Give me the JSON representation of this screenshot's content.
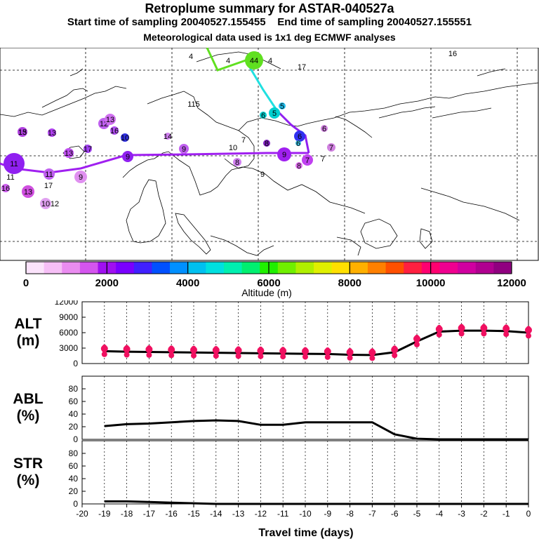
{
  "header": {
    "title": "Retroplume summary for ASTAR-040527a",
    "start_text": "Start time of sampling 20040527.155455",
    "end_text": "End time of sampling 20040527.155551",
    "met_text": "Meteorological data used is 1x1 deg ECMWF analyses"
  },
  "map": {
    "labels": [
      "4",
      "4",
      "44",
      "4",
      "16",
      "17",
      "115",
      "5",
      "5",
      "6",
      "6",
      "6",
      "6",
      "7",
      "7",
      "7",
      "7",
      "8",
      "8",
      "8",
      "9",
      "9",
      "9",
      "9",
      "10",
      "10",
      "11",
      "11",
      "11",
      "12",
      "12",
      "13",
      "13",
      "13",
      "13",
      "13",
      "14",
      "15",
      "16",
      "16",
      "17",
      "17",
      "10",
      "9"
    ]
  },
  "colorbar": {
    "ticks": [
      "0",
      "2000",
      "4000",
      "6000",
      "8000",
      "10000",
      "12000"
    ],
    "label": "Altitude (m)",
    "colors": [
      "#fbe3fb",
      "#f6bff6",
      "#ea8cf0",
      "#d455ee",
      "#a010f0",
      "#7a00ff",
      "#4020ff",
      "#0050ff",
      "#0090ff",
      "#00c0f0",
      "#00e0e0",
      "#00f0b0",
      "#00f070",
      "#20f000",
      "#70f000",
      "#b0f000",
      "#e0f000",
      "#ffe000",
      "#ffb000",
      "#ff8000",
      "#ff5000",
      "#ff2040",
      "#ff0070",
      "#f00090",
      "#d000a0",
      "#b00090",
      "#900080"
    ]
  },
  "chart_data": [
    {
      "type": "line",
      "panel": "ALT",
      "ylabel_lines": [
        "ALT",
        "(m)"
      ],
      "ylim": [
        0,
        12000
      ],
      "yticks": [
        "12000",
        "9000",
        "6000",
        "3000",
        "0"
      ],
      "x": [
        -19,
        -18,
        -17,
        -16,
        -15,
        -14,
        -13,
        -12,
        -11,
        -10,
        -9,
        -8,
        -7,
        -6,
        -5,
        -4,
        -3,
        -2,
        -1,
        0
      ],
      "values": [
        2400,
        2300,
        2250,
        2200,
        2150,
        2100,
        2050,
        2000,
        1950,
        1900,
        1850,
        1700,
        1650,
        2200,
        4300,
        6200,
        6400,
        6400,
        6300,
        6000
      ]
    },
    {
      "type": "line",
      "panel": "ABL",
      "ylabel_lines": [
        "ABL",
        "(%)"
      ],
      "ylim": [
        0,
        100
      ],
      "yticks": [
        "80",
        "60",
        "40",
        "20",
        "0"
      ],
      "x": [
        -19,
        -18,
        -17,
        -16,
        -15,
        -14,
        -13,
        -12,
        -11,
        -10,
        -9,
        -8,
        -7,
        -6,
        -5,
        -4,
        -3,
        -2,
        -1,
        0
      ],
      "values": [
        21,
        24,
        25,
        27,
        29,
        30,
        29,
        23,
        23,
        27,
        27,
        27,
        27,
        8,
        1,
        0,
        0,
        0,
        0,
        0
      ]
    },
    {
      "type": "line",
      "panel": "STR",
      "ylabel_lines": [
        "STR",
        "(%)"
      ],
      "ylim": [
        0,
        100
      ],
      "yticks": [
        "80",
        "60",
        "40",
        "20",
        "0"
      ],
      "x": [
        -19,
        -18,
        -17,
        -16,
        -15,
        -14,
        -13,
        -12,
        -11,
        -10,
        -9,
        -8,
        -7,
        -6,
        -5,
        -4,
        -3,
        -2,
        -1,
        0
      ],
      "values": [
        4,
        4,
        3,
        2,
        1,
        0,
        0,
        0,
        0,
        0,
        0,
        0,
        0,
        0,
        0,
        0,
        0,
        0,
        0,
        0
      ]
    }
  ],
  "xaxis": {
    "ticks": [
      "-20",
      "-19",
      "-18",
      "-17",
      "-16",
      "-15",
      "-14",
      "-13",
      "-12",
      "-11",
      "-10",
      "-9",
      "-8",
      "-7",
      "-6",
      "-5",
      "-4",
      "-3",
      "-2",
      "-1",
      "0"
    ],
    "label": "Travel time (days)"
  }
}
